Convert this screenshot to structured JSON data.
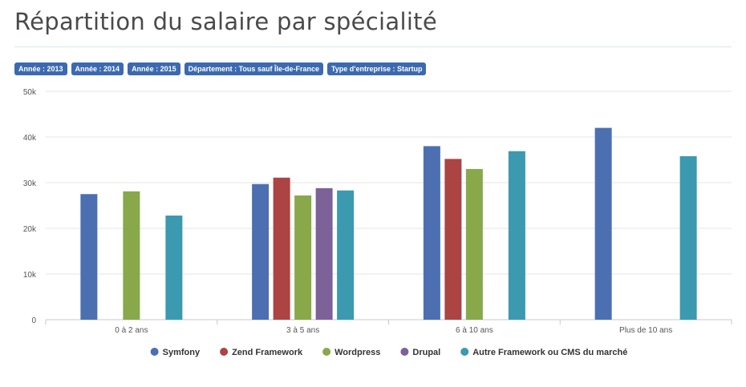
{
  "page": {
    "title": "Répartition du salaire par spécialité"
  },
  "filters": [
    "Année : 2013",
    "Année : 2014",
    "Année : 2015",
    "Département : Tous sauf Île-de-France",
    "Type d'entreprise : Startup"
  ],
  "chart_data": {
    "type": "bar",
    "categories": [
      "0 à 2 ans",
      "3 à 5 ans",
      "6 à 10 ans",
      "Plus de 10 ans"
    ],
    "ylim": [
      0,
      50000
    ],
    "yticks": [
      {
        "value": 0,
        "label": "0"
      },
      {
        "value": 10000,
        "label": "10k"
      },
      {
        "value": 20000,
        "label": "20k"
      },
      {
        "value": 30000,
        "label": "30k"
      },
      {
        "value": 40000,
        "label": "40k"
      },
      {
        "value": 50000,
        "label": "50k"
      }
    ],
    "grid": true,
    "legend_position": "bottom",
    "series": [
      {
        "name": "Symfony",
        "color": "#4c6fb2",
        "values": [
          27500,
          29700,
          38000,
          42000
        ]
      },
      {
        "name": "Zend Framework",
        "color": "#ab4442",
        "values": [
          null,
          31100,
          35200,
          null
        ]
      },
      {
        "name": "Wordpress",
        "color": "#88a84a",
        "values": [
          28100,
          27200,
          33000,
          null
        ]
      },
      {
        "name": "Drupal",
        "color": "#7d6199",
        "values": [
          null,
          28800,
          null,
          null
        ]
      },
      {
        "name": "Autre Framework ou CMS du marché",
        "color": "#3b99b0",
        "values": [
          22800,
          28300,
          36900,
          35800
        ]
      }
    ]
  }
}
